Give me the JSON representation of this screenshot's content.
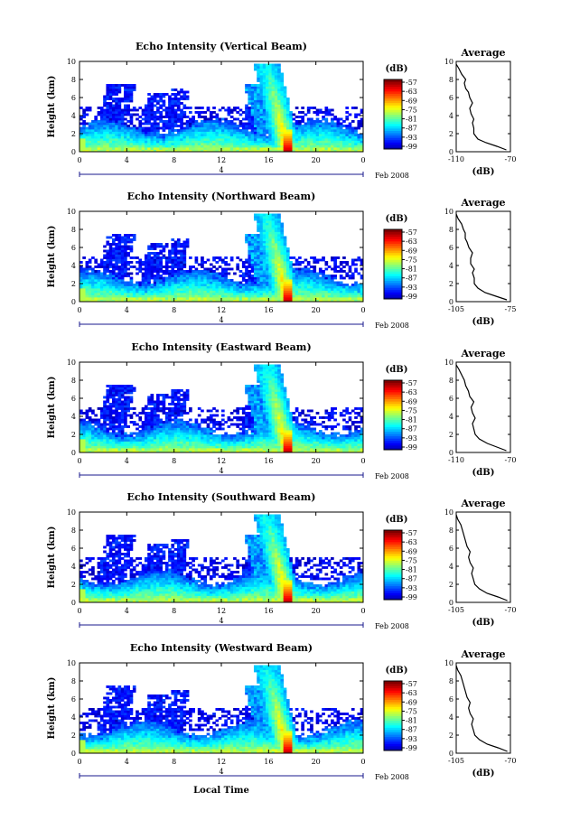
{
  "figure": {
    "xlabel": "Local Time",
    "date_label": "Feb 2008",
    "day_label": "4",
    "ylabel": "Height (km)",
    "cbar_unit": "(dB)",
    "avg_title": "Average",
    "avg_xlabel": "(dB)"
  },
  "chart_data": [
    {
      "type": "heatmap",
      "title": "Echo Intensity (Vertical Beam)",
      "x_ticks": [
        "0",
        "4",
        "8",
        "12",
        "16",
        "20",
        "0"
      ],
      "y_ticks": [
        "0",
        "2",
        "4",
        "6",
        "8",
        "10"
      ],
      "xlim": [
        0,
        24
      ],
      "ylim": [
        0,
        10
      ],
      "cbar_ticks": [
        "-57",
        "-63",
        "-69",
        "-75",
        "-81",
        "-87",
        "-93",
        "-99"
      ],
      "avg": {
        "type": "line",
        "title": "Average",
        "xlabel": "(dB)",
        "xlim": [
          -110,
          -70
        ],
        "x_ticks": [
          "-110",
          "-70"
        ],
        "y_ticks": [
          "0",
          "2",
          "4",
          "6",
          "8",
          "10"
        ],
        "profile": [
          [
            -73,
            0.2
          ],
          [
            -80,
            0.6
          ],
          [
            -88,
            1.0
          ],
          [
            -94,
            1.4
          ],
          [
            -97,
            2.0
          ],
          [
            -97,
            2.6
          ],
          [
            -98,
            3.2
          ],
          [
            -97,
            3.6
          ],
          [
            -99,
            4.2
          ],
          [
            -100,
            4.8
          ],
          [
            -98,
            5.4
          ],
          [
            -100,
            6.0
          ],
          [
            -101,
            6.6
          ],
          [
            -103,
            7.0
          ],
          [
            -104,
            7.6
          ],
          [
            -103,
            8.0
          ],
          [
            -106,
            8.6
          ],
          [
            -108,
            9.2
          ],
          [
            -110,
            9.7
          ]
        ]
      }
    },
    {
      "type": "heatmap",
      "title": "Echo Intensity (Northward Beam)",
      "x_ticks": [
        "0",
        "4",
        "8",
        "12",
        "16",
        "20",
        "0"
      ],
      "y_ticks": [
        "0",
        "2",
        "4",
        "6",
        "8",
        "10"
      ],
      "xlim": [
        0,
        24
      ],
      "ylim": [
        0,
        10
      ],
      "cbar_ticks": [
        "-57",
        "-63",
        "-69",
        "-75",
        "-81",
        "-87",
        "-93",
        "-99"
      ],
      "avg": {
        "type": "line",
        "title": "Average",
        "xlabel": "(dB)",
        "xlim": [
          -105,
          -75
        ],
        "x_ticks": [
          "-105",
          "-75"
        ],
        "y_ticks": [
          "0",
          "2",
          "4",
          "6",
          "8",
          "10"
        ],
        "profile": [
          [
            -77,
            0.2
          ],
          [
            -83,
            0.6
          ],
          [
            -89,
            1.0
          ],
          [
            -93,
            1.5
          ],
          [
            -95,
            2.0
          ],
          [
            -95,
            2.6
          ],
          [
            -96,
            3.2
          ],
          [
            -95,
            3.6
          ],
          [
            -97,
            4.2
          ],
          [
            -97,
            4.8
          ],
          [
            -96,
            5.4
          ],
          [
            -98,
            6.0
          ],
          [
            -99,
            6.6
          ],
          [
            -100,
            7.0
          ],
          [
            -100,
            7.6
          ],
          [
            -101,
            8.0
          ],
          [
            -102,
            8.6
          ],
          [
            -104,
            9.2
          ],
          [
            -105,
            9.7
          ]
        ]
      }
    },
    {
      "type": "heatmap",
      "title": "Echo Intensity (Eastward Beam)",
      "x_ticks": [
        "0",
        "4",
        "8",
        "12",
        "16",
        "20",
        "0"
      ],
      "y_ticks": [
        "0",
        "2",
        "4",
        "6",
        "8",
        "10"
      ],
      "xlim": [
        0,
        24
      ],
      "ylim": [
        0,
        10
      ],
      "cbar_ticks": [
        "-57",
        "-63",
        "-69",
        "-75",
        "-81",
        "-87",
        "-93",
        "-99"
      ],
      "avg": {
        "type": "line",
        "title": "Average",
        "xlabel": "(dB)",
        "xlim": [
          -110,
          -70
        ],
        "x_ticks": [
          "-110",
          "-70"
        ],
        "y_ticks": [
          "0",
          "2",
          "4",
          "6",
          "8",
          "10"
        ],
        "profile": [
          [
            -73,
            0.2
          ],
          [
            -80,
            0.6
          ],
          [
            -87,
            1.0
          ],
          [
            -93,
            1.5
          ],
          [
            -96,
            2.0
          ],
          [
            -97,
            2.6
          ],
          [
            -98,
            3.2
          ],
          [
            -96,
            3.8
          ],
          [
            -98,
            4.4
          ],
          [
            -99,
            5.0
          ],
          [
            -97,
            5.6
          ],
          [
            -100,
            6.2
          ],
          [
            -101,
            6.8
          ],
          [
            -103,
            7.4
          ],
          [
            -104,
            8.0
          ],
          [
            -106,
            8.6
          ],
          [
            -108,
            9.2
          ],
          [
            -110,
            9.7
          ]
        ]
      }
    },
    {
      "type": "heatmap",
      "title": "Echo Intensity (Southward Beam)",
      "x_ticks": [
        "0",
        "4",
        "8",
        "12",
        "16",
        "20",
        "0"
      ],
      "y_ticks": [
        "0",
        "2",
        "4",
        "6",
        "8",
        "10"
      ],
      "xlim": [
        0,
        24
      ],
      "ylim": [
        0,
        10
      ],
      "cbar_ticks": [
        "-57",
        "-63",
        "-69",
        "-75",
        "-81",
        "-87",
        "-93",
        "-99"
      ],
      "avg": {
        "type": "line",
        "title": "Average",
        "xlabel": "(dB)",
        "xlim": [
          -105,
          -70
        ],
        "x_ticks": [
          "-105",
          "-70"
        ],
        "y_ticks": [
          "0",
          "2",
          "4",
          "6",
          "8",
          "10"
        ],
        "profile": [
          [
            -72,
            0.2
          ],
          [
            -78,
            0.6
          ],
          [
            -85,
            1.0
          ],
          [
            -90,
            1.5
          ],
          [
            -93,
            2.0
          ],
          [
            -94,
            2.6
          ],
          [
            -95,
            3.2
          ],
          [
            -94,
            3.8
          ],
          [
            -96,
            4.4
          ],
          [
            -97,
            5.0
          ],
          [
            -96,
            5.6
          ],
          [
            -98,
            6.2
          ],
          [
            -99,
            6.8
          ],
          [
            -100,
            7.4
          ],
          [
            -101,
            8.0
          ],
          [
            -102,
            8.6
          ],
          [
            -104,
            9.2
          ],
          [
            -105,
            9.7
          ]
        ]
      }
    },
    {
      "type": "heatmap",
      "title": "Echo Intensity (Westward Beam)",
      "x_ticks": [
        "0",
        "4",
        "8",
        "12",
        "16",
        "20",
        "0"
      ],
      "y_ticks": [
        "0",
        "2",
        "4",
        "6",
        "8",
        "10"
      ],
      "xlim": [
        0,
        24
      ],
      "ylim": [
        0,
        10
      ],
      "cbar_ticks": [
        "-57",
        "-63",
        "-69",
        "-75",
        "-81",
        "-87",
        "-93",
        "-99"
      ],
      "avg": {
        "type": "line",
        "title": "Average",
        "xlabel": "(dB)",
        "xlim": [
          -105,
          -70
        ],
        "x_ticks": [
          "-105",
          "-70"
        ],
        "y_ticks": [
          "0",
          "2",
          "4",
          "6",
          "8",
          "10"
        ],
        "profile": [
          [
            -72,
            0.2
          ],
          [
            -78,
            0.6
          ],
          [
            -85,
            1.0
          ],
          [
            -90,
            1.5
          ],
          [
            -93,
            2.0
          ],
          [
            -94,
            2.6
          ],
          [
            -95,
            3.2
          ],
          [
            -94,
            3.8
          ],
          [
            -96,
            4.4
          ],
          [
            -97,
            5.0
          ],
          [
            -96,
            5.6
          ],
          [
            -98,
            6.2
          ],
          [
            -99,
            6.8
          ],
          [
            -100,
            7.4
          ],
          [
            -101,
            8.0
          ],
          [
            -102,
            8.6
          ],
          [
            -104,
            9.2
          ],
          [
            -105,
            9.7
          ]
        ]
      }
    }
  ]
}
